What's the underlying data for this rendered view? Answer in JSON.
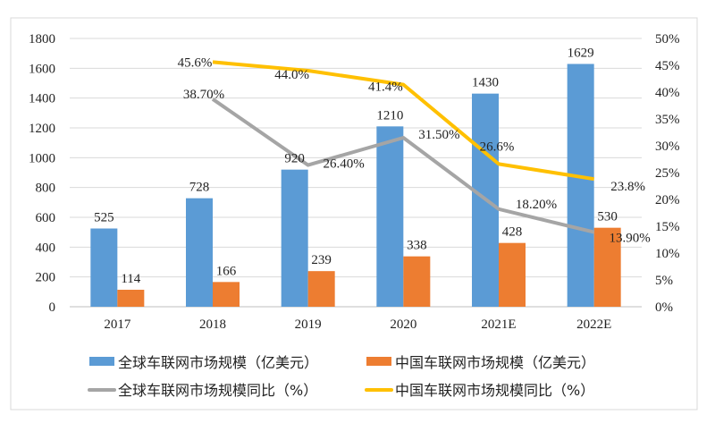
{
  "chart_data": {
    "type": "bar+line",
    "categories": [
      "2017",
      "2018",
      "2019",
      "2020",
      "2021E",
      "2022E"
    ],
    "ylim": [
      0,
      1800
    ],
    "yticks": [
      0,
      200,
      400,
      600,
      800,
      1000,
      1200,
      1400,
      1600,
      1800
    ],
    "y2lim": [
      0,
      50
    ],
    "y2ticks": [
      "0%",
      "5%",
      "10%",
      "15%",
      "20%",
      "25%",
      "30%",
      "35%",
      "40%",
      "45%",
      "50%"
    ],
    "grid": true,
    "legend_position": "bottom",
    "series": [
      {
        "name": "全球车联网市场规模（亿美元）",
        "type": "bar",
        "axis": "left",
        "color": "#5B9BD5",
        "values": [
          525,
          728,
          920,
          1210,
          1430,
          1629
        ],
        "labels": [
          "525",
          "728",
          "920",
          "1210",
          "1430",
          "1629"
        ]
      },
      {
        "name": "中国车联网市场规模（亿美元）",
        "type": "bar",
        "axis": "left",
        "color": "#ED7D31",
        "values": [
          114,
          166,
          239,
          338,
          428,
          530
        ],
        "labels": [
          "114",
          "166",
          "239",
          "338",
          "428",
          "530"
        ]
      },
      {
        "name": "全球车联网市场规模同比（%）",
        "type": "line",
        "axis": "right",
        "color": "#A5A5A5",
        "values": [
          null,
          38.7,
          26.4,
          31.5,
          18.2,
          13.9
        ],
        "labels": [
          "",
          "38.70%",
          "26.40%",
          "31.50%",
          "18.20%",
          "13.90%"
        ]
      },
      {
        "name": "中国车联网市场规模同比（%）",
        "type": "line",
        "axis": "right",
        "color": "#FFC000",
        "values": [
          null,
          45.6,
          44.0,
          41.4,
          26.6,
          23.8
        ],
        "labels": [
          "",
          "45.6%",
          "44.0%",
          "41.4%",
          "26.6%",
          "23.8%"
        ]
      }
    ]
  }
}
